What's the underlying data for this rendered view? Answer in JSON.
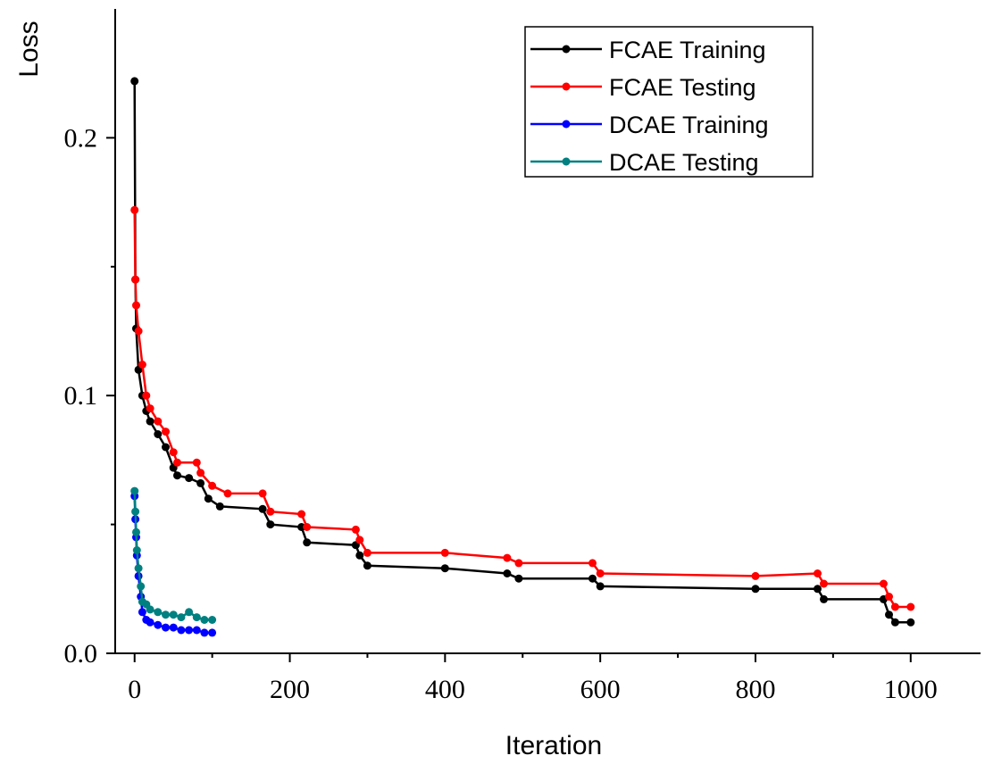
{
  "chart_data": {
    "type": "line",
    "title": "",
    "xlabel": "Iteration",
    "ylabel": "Loss",
    "xlim": [
      -25,
      1090
    ],
    "ylim": [
      0,
      0.25
    ],
    "x_ticks": [
      0,
      200,
      400,
      600,
      800,
      1000
    ],
    "x_tick_labels": [
      "0",
      "200",
      "400",
      "600",
      "800",
      "1000"
    ],
    "y_ticks": [
      0,
      0.1,
      0.2
    ],
    "y_tick_labels": [
      "0.0",
      "0.1",
      "0.2"
    ],
    "grid": false,
    "legend_position": "top-right",
    "series": [
      {
        "name": "FCAE Training",
        "color": "#000000",
        "marker": "circle",
        "points": [
          [
            0,
            0.222
          ],
          [
            1,
            0.145
          ],
          [
            2,
            0.126
          ],
          [
            5,
            0.11
          ],
          [
            10,
            0.1
          ],
          [
            15,
            0.094
          ],
          [
            20,
            0.09
          ],
          [
            30,
            0.085
          ],
          [
            40,
            0.08
          ],
          [
            50,
            0.072
          ],
          [
            55,
            0.069
          ],
          [
            70,
            0.068
          ],
          [
            85,
            0.066
          ],
          [
            95,
            0.06
          ],
          [
            110,
            0.057
          ],
          [
            165,
            0.056
          ],
          [
            175,
            0.05
          ],
          [
            215,
            0.049
          ],
          [
            222,
            0.043
          ],
          [
            285,
            0.042
          ],
          [
            290,
            0.038
          ],
          [
            300,
            0.034
          ],
          [
            400,
            0.033
          ],
          [
            480,
            0.031
          ],
          [
            495,
            0.029
          ],
          [
            590,
            0.029
          ],
          [
            600,
            0.026
          ],
          [
            800,
            0.025
          ],
          [
            880,
            0.025
          ],
          [
            888,
            0.021
          ],
          [
            965,
            0.021
          ],
          [
            972,
            0.015
          ],
          [
            980,
            0.012
          ],
          [
            1000,
            0.012
          ]
        ]
      },
      {
        "name": "FCAE Testing",
        "color": "#ff0000",
        "marker": "circle",
        "points": [
          [
            0,
            0.172
          ],
          [
            1,
            0.145
          ],
          [
            2,
            0.135
          ],
          [
            5,
            0.125
          ],
          [
            10,
            0.112
          ],
          [
            15,
            0.1
          ],
          [
            20,
            0.095
          ],
          [
            30,
            0.09
          ],
          [
            40,
            0.086
          ],
          [
            50,
            0.078
          ],
          [
            55,
            0.074
          ],
          [
            80,
            0.074
          ],
          [
            85,
            0.07
          ],
          [
            100,
            0.065
          ],
          [
            120,
            0.062
          ],
          [
            165,
            0.062
          ],
          [
            175,
            0.055
          ],
          [
            215,
            0.054
          ],
          [
            222,
            0.049
          ],
          [
            285,
            0.048
          ],
          [
            290,
            0.044
          ],
          [
            300,
            0.039
          ],
          [
            400,
            0.039
          ],
          [
            480,
            0.037
          ],
          [
            495,
            0.035
          ],
          [
            590,
            0.035
          ],
          [
            600,
            0.031
          ],
          [
            800,
            0.03
          ],
          [
            880,
            0.031
          ],
          [
            888,
            0.027
          ],
          [
            965,
            0.027
          ],
          [
            972,
            0.022
          ],
          [
            980,
            0.018
          ],
          [
            1000,
            0.018
          ]
        ]
      },
      {
        "name": "DCAE Training",
        "color": "#0000ff",
        "marker": "circle",
        "points": [
          [
            0,
            0.061
          ],
          [
            1,
            0.052
          ],
          [
            2,
            0.045
          ],
          [
            3,
            0.038
          ],
          [
            5,
            0.03
          ],
          [
            8,
            0.022
          ],
          [
            10,
            0.016
          ],
          [
            15,
            0.013
          ],
          [
            20,
            0.012
          ],
          [
            30,
            0.011
          ],
          [
            40,
            0.01
          ],
          [
            50,
            0.01
          ],
          [
            60,
            0.009
          ],
          [
            70,
            0.009
          ],
          [
            80,
            0.009
          ],
          [
            90,
            0.008
          ],
          [
            100,
            0.008
          ]
        ]
      },
      {
        "name": "DCAE Testing",
        "color": "#008080",
        "marker": "circle",
        "points": [
          [
            0,
            0.063
          ],
          [
            1,
            0.055
          ],
          [
            2,
            0.047
          ],
          [
            3,
            0.04
          ],
          [
            5,
            0.033
          ],
          [
            8,
            0.026
          ],
          [
            10,
            0.02
          ],
          [
            15,
            0.019
          ],
          [
            20,
            0.017
          ],
          [
            30,
            0.016
          ],
          [
            40,
            0.015
          ],
          [
            50,
            0.015
          ],
          [
            60,
            0.014
          ],
          [
            70,
            0.016
          ],
          [
            80,
            0.014
          ],
          [
            90,
            0.013
          ],
          [
            100,
            0.013
          ]
        ]
      }
    ]
  }
}
